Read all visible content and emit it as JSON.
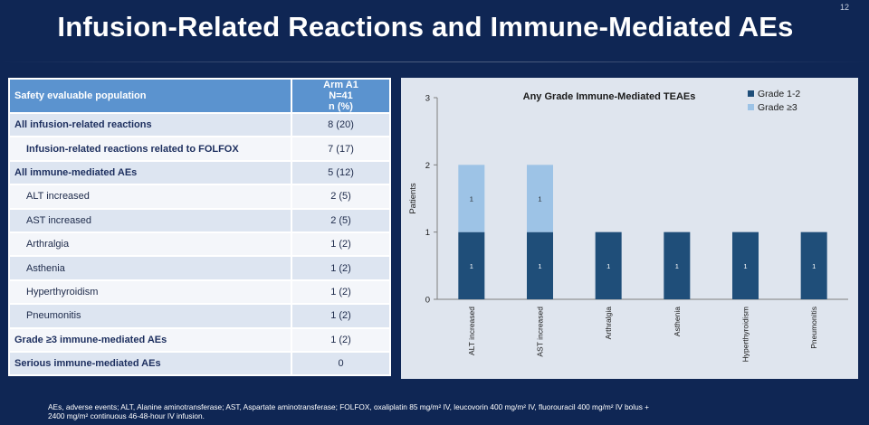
{
  "slide_number": "12",
  "title": "Infusion-Related Reactions and Immune-Mediated AEs",
  "table": {
    "header_label": "Safety evaluable population",
    "arm_line1": "Arm A1",
    "arm_line2": "N=41",
    "arm_line3": "n (%)",
    "rows": [
      {
        "label": "All infusion-related reactions",
        "value": "8 (20)"
      },
      {
        "label": "Infusion-related reactions related to FOLFOX",
        "value": "7 (17)"
      },
      {
        "label": "All immune-mediated AEs",
        "value": "5 (12)"
      },
      {
        "label": "ALT increased",
        "value": "2 (5)"
      },
      {
        "label": "AST increased",
        "value": "2 (5)"
      },
      {
        "label": "Arthralgia",
        "value": "1 (2)"
      },
      {
        "label": "Asthenia",
        "value": "1 (2)"
      },
      {
        "label": "Hyperthyroidism",
        "value": "1 (2)"
      },
      {
        "label": "Pneumonitis",
        "value": "1 (2)"
      },
      {
        "label": "Grade ≥3 immune-mediated AEs",
        "value": "1 (2)"
      },
      {
        "label": "Serious immune-mediated AEs",
        "value": "0"
      }
    ]
  },
  "chart_data": {
    "type": "bar",
    "stacked": true,
    "title": "Any Grade Immune-Mediated TEAEs",
    "xlabel": "",
    "ylabel": "Patients",
    "ylim": [
      0,
      3
    ],
    "yticks": [
      "0",
      "1",
      "2",
      "3"
    ],
    "categories": [
      "ALT increased",
      "AST increased",
      "Arthralgia",
      "Asthenia",
      "Hyperthyroidism",
      "Pneumonitis"
    ],
    "series": [
      {
        "name": "Grade 1-2",
        "values": [
          1,
          1,
          1,
          1,
          1,
          1
        ],
        "color": "#1f4e79"
      },
      {
        "name": "Grade ≥3",
        "values": [
          1,
          1,
          0,
          0,
          0,
          0
        ],
        "color": "#9dc3e6"
      }
    ],
    "legend_position": "top-right"
  },
  "footnote": {
    "line1": "AEs, adverse events; ALT, Alanine aminotransferase; AST, Aspartate aminotransferase; FOLFOX, oxaliplatin 85 mg/m² IV, leucovorin 400 mg/m² IV, fluorouracil 400 mg/m² IV bolus +",
    "line2": "2400 mg/m² continuous 46-48-hour IV infusion."
  }
}
